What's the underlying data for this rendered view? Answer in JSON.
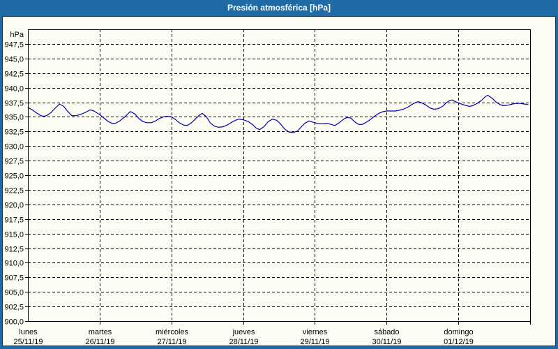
{
  "window": {
    "title": "Presión atmosférica [hPa]"
  },
  "colors": {
    "frame": "#1e6ba5",
    "title_text": "#ffffff",
    "panel_bg": "#fdfdf4",
    "panel_border": "#16375c",
    "plot_border": "#000000",
    "grid": "#000000",
    "text": "#000000",
    "line": "#0000b3"
  },
  "chart_data": {
    "type": "line",
    "title": "Presión atmosférica [hPa]",
    "ylabel": "hPa",
    "ylim": [
      900,
      950
    ],
    "ytick_step": 2.5,
    "ytick_labels_top_to_bottom": [
      "947,5",
      "945,0",
      "942,5",
      "940,0",
      "937,5",
      "935,0",
      "932,5",
      "930,0",
      "927,5",
      "925,0",
      "922,5",
      "920,0",
      "917,5",
      "915,0",
      "912,5",
      "910,0",
      "907,5",
      "905,0",
      "902,5",
      "900,0"
    ],
    "x_categories": [
      {
        "day": "lunes",
        "date": "25/11/19"
      },
      {
        "day": "martes",
        "date": "26/11/19"
      },
      {
        "day": "miércoles",
        "date": "27/11/19"
      },
      {
        "day": "jueves",
        "date": "28/11/19"
      },
      {
        "day": "viernes",
        "date": "29/11/19"
      },
      {
        "day": "sábado",
        "date": "30/11/19"
      },
      {
        "day": "domingo",
        "date": "01/12/19"
      }
    ],
    "xlim_days": [
      0,
      7
    ],
    "grid": "dashed",
    "legend": "none",
    "series": [
      {
        "name": "Presión atmosférica",
        "unit": "hPa",
        "color": "#0000b3",
        "points": [
          [
            0,
            936.6
          ],
          [
            0.06,
            936.2
          ],
          [
            0.13,
            935.6
          ],
          [
            0.18,
            935.2
          ],
          [
            0.22,
            935.1
          ],
          [
            0.26,
            935.2
          ],
          [
            0.32,
            935.7
          ],
          [
            0.38,
            936.5
          ],
          [
            0.44,
            937.2
          ],
          [
            0.5,
            936.8
          ],
          [
            0.55,
            936.0
          ],
          [
            0.61,
            935.2
          ],
          [
            0.67,
            935.2
          ],
          [
            0.73,
            935.4
          ],
          [
            0.79,
            935.7
          ],
          [
            0.84,
            936.0
          ],
          [
            0.87,
            936.2
          ],
          [
            0.92,
            936.0
          ],
          [
            0.96,
            935.7
          ],
          [
            1,
            935.4
          ],
          [
            1.06,
            934.8
          ],
          [
            1.12,
            934.2
          ],
          [
            1.17,
            933.9
          ],
          [
            1.22,
            933.9
          ],
          [
            1.28,
            934.3
          ],
          [
            1.35,
            935.0
          ],
          [
            1.41,
            935.7
          ],
          [
            1.43,
            935.9
          ],
          [
            1.49,
            935.5
          ],
          [
            1.54,
            934.8
          ],
          [
            1.6,
            934.2
          ],
          [
            1.66,
            934.0
          ],
          [
            1.72,
            934.0
          ],
          [
            1.78,
            934.3
          ],
          [
            1.83,
            934.7
          ],
          [
            1.89,
            935.0
          ],
          [
            1.95,
            935.1
          ],
          [
            2,
            935.0
          ],
          [
            2.05,
            934.6
          ],
          [
            2.11,
            934.0
          ],
          [
            2.17,
            933.6
          ],
          [
            2.22,
            933.5
          ],
          [
            2.28,
            934.0
          ],
          [
            2.34,
            934.7
          ],
          [
            2.4,
            935.4
          ],
          [
            2.43,
            935.6
          ],
          [
            2.49,
            935.0
          ],
          [
            2.54,
            934.0
          ],
          [
            2.6,
            933.4
          ],
          [
            2.66,
            933.2
          ],
          [
            2.72,
            933.3
          ],
          [
            2.78,
            933.6
          ],
          [
            2.83,
            934.0
          ],
          [
            2.89,
            934.4
          ],
          [
            2.94,
            934.6
          ],
          [
            3,
            934.5
          ],
          [
            3.07,
            934.2
          ],
          [
            3.13,
            933.7
          ],
          [
            3.18,
            933.1
          ],
          [
            3.23,
            932.8
          ],
          [
            3.29,
            933.3
          ],
          [
            3.35,
            934.2
          ],
          [
            3.41,
            934.6
          ],
          [
            3.47,
            934.4
          ],
          [
            3.52,
            933.8
          ],
          [
            3.58,
            932.9
          ],
          [
            3.64,
            932.4
          ],
          [
            3.7,
            932.3
          ],
          [
            3.76,
            932.6
          ],
          [
            3.82,
            933.4
          ],
          [
            3.87,
            934.0
          ],
          [
            3.92,
            934.3
          ],
          [
            3.97,
            934.1
          ],
          [
            4,
            934.0
          ],
          [
            4.06,
            933.8
          ],
          [
            4.12,
            933.8
          ],
          [
            4.17,
            933.9
          ],
          [
            4.23,
            933.7
          ],
          [
            4.28,
            933.5
          ],
          [
            4.34,
            934.0
          ],
          [
            4.4,
            934.6
          ],
          [
            4.45,
            934.9
          ],
          [
            4.5,
            934.8
          ],
          [
            4.56,
            934.1
          ],
          [
            4.61,
            933.7
          ],
          [
            4.66,
            933.7
          ],
          [
            4.72,
            934.1
          ],
          [
            4.78,
            934.6
          ],
          [
            4.83,
            935.1
          ],
          [
            4.89,
            935.6
          ],
          [
            4.95,
            935.9
          ],
          [
            5,
            936.0
          ],
          [
            5.06,
            936.0
          ],
          [
            5.12,
            936.0
          ],
          [
            5.17,
            936.1
          ],
          [
            5.23,
            936.3
          ],
          [
            5.29,
            936.6
          ],
          [
            5.35,
            937.1
          ],
          [
            5.41,
            937.5
          ],
          [
            5.44,
            937.6
          ],
          [
            5.49,
            937.4
          ],
          [
            5.55,
            937.0
          ],
          [
            5.61,
            936.5
          ],
          [
            5.66,
            936.3
          ],
          [
            5.72,
            936.4
          ],
          [
            5.78,
            936.8
          ],
          [
            5.83,
            937.4
          ],
          [
            5.88,
            937.8
          ],
          [
            5.91,
            937.9
          ],
          [
            5.96,
            937.6
          ],
          [
            6,
            937.4
          ],
          [
            6.06,
            937.1
          ],
          [
            6.12,
            936.9
          ],
          [
            6.15,
            936.8
          ],
          [
            6.2,
            936.9
          ],
          [
            6.26,
            937.3
          ],
          [
            6.32,
            937.8
          ],
          [
            6.38,
            938.5
          ],
          [
            6.41,
            938.7
          ],
          [
            6.47,
            938.2
          ],
          [
            6.52,
            937.6
          ],
          [
            6.58,
            937.1
          ],
          [
            6.63,
            936.9
          ],
          [
            6.69,
            937.0
          ],
          [
            6.75,
            937.2
          ],
          [
            6.81,
            937.3
          ],
          [
            6.86,
            937.3
          ],
          [
            6.92,
            937.2
          ],
          [
            6.97,
            937.1
          ]
        ]
      }
    ]
  }
}
